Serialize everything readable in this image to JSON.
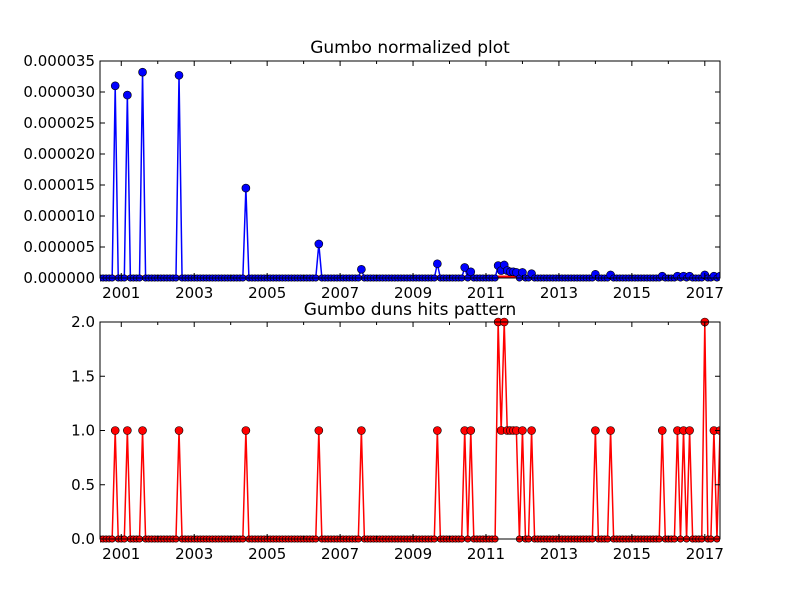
{
  "chart_data": [
    {
      "type": "line",
      "title": "Gumbo normalized plot",
      "xlabel": "",
      "ylabel": "",
      "x_range": [
        "2000-06-01",
        "2017-06-01"
      ],
      "ylim": [
        0,
        3.5e-05
      ],
      "x_ticks": [
        "2001",
        "2003",
        "2005",
        "2007",
        "2009",
        "2011",
        "2013",
        "2015",
        "2017"
      ],
      "y_ticks": [
        "0.000000",
        "0.000005",
        "0.000010",
        "0.000015",
        "0.000020",
        "0.000025",
        "0.000030",
        "0.000035"
      ],
      "line_color": "#0000ff",
      "marker_color": "#0000ff",
      "baseline_color": "#ff0000",
      "grid": false,
      "peaks": [
        {
          "x": "2000-11-01",
          "y": 3.1e-05
        },
        {
          "x": "2001-03-01",
          "y": 2.95e-05
        },
        {
          "x": "2001-08-01",
          "y": 3.32e-05
        },
        {
          "x": "2002-08-01",
          "y": 3.27e-05
        },
        {
          "x": "2004-06-01",
          "y": 1.45e-05
        },
        {
          "x": "2006-06-01",
          "y": 5.5e-06
        },
        {
          "x": "2007-08-01",
          "y": 1.4e-06
        },
        {
          "x": "2009-09-01",
          "y": 2.3e-06
        },
        {
          "x": "2010-06-01",
          "y": 1.7e-06
        },
        {
          "x": "2010-08-01",
          "y": 1e-06
        },
        {
          "x": "2011-05-01",
          "y": 2e-06
        },
        {
          "x": "2011-06-01",
          "y": 1.2e-06
        },
        {
          "x": "2011-07-01",
          "y": 2.1e-06
        },
        {
          "x": "2011-08-01",
          "y": 1.2e-06
        },
        {
          "x": "2011-09-01",
          "y": 1e-06
        },
        {
          "x": "2011-10-01",
          "y": 1e-06
        },
        {
          "x": "2011-11-01",
          "y": 9e-07
        },
        {
          "x": "2012-01-01",
          "y": 9e-07
        },
        {
          "x": "2012-04-01",
          "y": 7e-07
        },
        {
          "x": "2014-01-01",
          "y": 6e-07
        },
        {
          "x": "2014-06-01",
          "y": 5e-07
        },
        {
          "x": "2015-11-01",
          "y": 3e-07
        },
        {
          "x": "2016-04-01",
          "y": 3e-07
        },
        {
          "x": "2016-06-01",
          "y": 3e-07
        },
        {
          "x": "2016-08-01",
          "y": 3e-07
        },
        {
          "x": "2017-01-01",
          "y": 5e-07
        },
        {
          "x": "2017-04-01",
          "y": 3e-07
        },
        {
          "x": "2017-06-01",
          "y": 3e-07
        }
      ]
    },
    {
      "type": "line",
      "title": "Gumbo duns hits pattern",
      "xlabel": "",
      "ylabel": "",
      "x_range": [
        "2000-06-01",
        "2017-06-01"
      ],
      "ylim": [
        0,
        2.0
      ],
      "x_ticks": [
        "2001",
        "2003",
        "2005",
        "2007",
        "2009",
        "2011",
        "2013",
        "2015",
        "2017"
      ],
      "y_ticks": [
        "0.0",
        "0.5",
        "1.0",
        "1.5",
        "2.0"
      ],
      "line_color": "#ff0000",
      "marker_color": "#ff0000",
      "grid": false,
      "peaks": [
        {
          "x": "2000-11-01",
          "y": 1
        },
        {
          "x": "2001-03-01",
          "y": 1
        },
        {
          "x": "2001-08-01",
          "y": 1
        },
        {
          "x": "2002-08-01",
          "y": 1
        },
        {
          "x": "2004-06-01",
          "y": 1
        },
        {
          "x": "2006-06-01",
          "y": 1
        },
        {
          "x": "2007-08-01",
          "y": 1
        },
        {
          "x": "2009-09-01",
          "y": 1
        },
        {
          "x": "2010-06-01",
          "y": 1
        },
        {
          "x": "2010-08-01",
          "y": 1
        },
        {
          "x": "2011-05-01",
          "y": 2
        },
        {
          "x": "2011-06-01",
          "y": 1
        },
        {
          "x": "2011-07-01",
          "y": 2
        },
        {
          "x": "2011-08-01",
          "y": 1
        },
        {
          "x": "2011-09-01",
          "y": 1
        },
        {
          "x": "2011-10-01",
          "y": 1
        },
        {
          "x": "2011-11-01",
          "y": 1
        },
        {
          "x": "2012-01-01",
          "y": 1
        },
        {
          "x": "2012-04-01",
          "y": 1
        },
        {
          "x": "2014-01-01",
          "y": 1
        },
        {
          "x": "2014-06-01",
          "y": 1
        },
        {
          "x": "2015-11-01",
          "y": 1
        },
        {
          "x": "2016-04-01",
          "y": 1
        },
        {
          "x": "2016-06-01",
          "y": 1
        },
        {
          "x": "2016-08-01",
          "y": 1
        },
        {
          "x": "2017-01-01",
          "y": 2
        },
        {
          "x": "2017-04-01",
          "y": 1
        },
        {
          "x": "2017-06-01",
          "y": 1
        }
      ]
    }
  ]
}
